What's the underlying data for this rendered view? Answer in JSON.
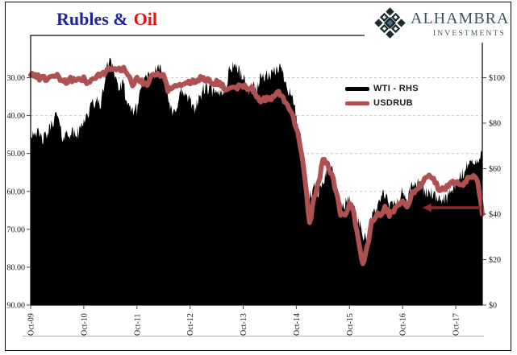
{
  "title": {
    "part1": "Rubles &",
    "part2": "Oil",
    "part1_color": "#22229b",
    "part2_color": "#ee0f0f"
  },
  "logo": {
    "name": "ALHAMBRA",
    "sub": "INVESTMENTS",
    "text_color": "#3e545f",
    "icon_dark": "#1b2a31",
    "icon_blue": "#3a6ba3"
  },
  "legend": {
    "items": [
      {
        "label": "WTI - RHS",
        "color": "#000000"
      },
      {
        "label": "USDRUB",
        "color": "#b05151"
      }
    ]
  },
  "chart_data": {
    "type": "area",
    "title": "Rubles & Oil",
    "x_unit": "monthly",
    "x_start_label": "Oct-09",
    "x_end_label": "Apr-18",
    "x_tick_labels": [
      "Oct-09",
      "Oct-10",
      "Oct-11",
      "Oct-12",
      "Oct-13",
      "Oct-14",
      "Oct-15",
      "Oct-16",
      "Oct-17"
    ],
    "x_tick_month_indices": [
      0,
      12,
      24,
      36,
      48,
      60,
      72,
      84,
      96
    ],
    "left_axis": {
      "series": "USDRUB",
      "inverted": true,
      "ticks": [
        "30.00",
        "40.00",
        "50.00",
        "60.00",
        "70.00",
        "80.00",
        "90.00"
      ],
      "tick_values": [
        30,
        40,
        50,
        60,
        70,
        80,
        90
      ],
      "range_shown": [
        30,
        90
      ]
    },
    "right_axis": {
      "series": "WTI - RHS",
      "ticks": [
        "$0",
        "$20",
        "$40",
        "$60",
        "$80",
        "$100"
      ],
      "tick_values": [
        0,
        20,
        40,
        60,
        80,
        100
      ],
      "range_shown": [
        0,
        120
      ]
    },
    "grid": {
      "color": "#c7c7c7",
      "dashed": true,
      "at_left_axis_values": [
        30,
        40,
        50,
        60,
        70,
        80
      ]
    },
    "series": [
      {
        "name": "WTI - RHS",
        "axis": "right",
        "style": "area",
        "color": "#000000",
        "values": [
          75,
          77,
          74,
          73,
          76,
          81,
          84,
          74,
          75,
          76,
          75,
          76,
          82,
          84,
          89,
          89,
          89,
          102,
          110,
          101,
          95,
          97,
          86,
          86,
          86,
          97,
          99,
          100,
          102,
          106,
          104,
          91,
          83,
          88,
          94,
          92,
          89,
          87,
          90,
          95,
          95,
          94,
          92,
          94,
          95,
          104,
          106,
          103,
          100,
          94,
          97,
          95,
          100,
          101,
          100,
          102,
          105,
          102,
          96,
          92,
          83,
          73,
          57,
          47,
          51,
          48,
          55,
          59,
          60,
          51,
          43,
          45,
          46,
          42,
          37,
          31,
          30,
          38,
          42,
          47,
          49,
          43,
          45,
          45,
          50,
          46,
          52,
          53,
          54,
          49,
          50,
          48,
          45,
          47,
          47,
          50,
          52,
          57,
          58,
          64,
          62,
          63,
          66
        ]
      },
      {
        "name": "USDRUB",
        "axis": "left",
        "style": "line",
        "color": "#b05151",
        "values": [
          29.3,
          29.0,
          30.2,
          30.2,
          30.0,
          29.4,
          29.2,
          30.8,
          31.2,
          30.3,
          30.8,
          30.7,
          30.3,
          31.4,
          30.5,
          29.7,
          28.9,
          28.4,
          27.4,
          28.0,
          28.1,
          27.7,
          28.9,
          32.0,
          29.9,
          30.8,
          32.0,
          30.4,
          28.9,
          29.3,
          29.4,
          33.2,
          32.5,
          32.2,
          32.3,
          30.9,
          31.4,
          31.0,
          30.4,
          30.0,
          30.6,
          31.1,
          31.3,
          31.6,
          32.9,
          32.9,
          33.2,
          32.4,
          31.9,
          33.1,
          32.9,
          35.2,
          36.1,
          35.6,
          35.7,
          34.8,
          33.8,
          35.7,
          37.0,
          39.6,
          43.0,
          49.0,
          56.7,
          68.9,
          61.5,
          58.0,
          51.8,
          52.9,
          55.5,
          60.2,
          66.0,
          66.2,
          63.0,
          66.0,
          72.3,
          79.5,
          75.0,
          67.8,
          66.5,
          66.0,
          64.2,
          66.0,
          65.0,
          63.2,
          62.8,
          64.3,
          60.9,
          59.7,
          58.3,
          56.5,
          56.2,
          56.9,
          59.0,
          59.6,
          58.8,
          57.7,
          57.8,
          58.4,
          57.8,
          56.3,
          56.2,
          57.1,
          66.0
        ]
      }
    ],
    "annotation_arrow": {
      "direction": "left",
      "color": "#8e2a2a",
      "usdrub_level": 64.3,
      "from_month_index": 101.6,
      "to_month_index": 88.5
    }
  }
}
